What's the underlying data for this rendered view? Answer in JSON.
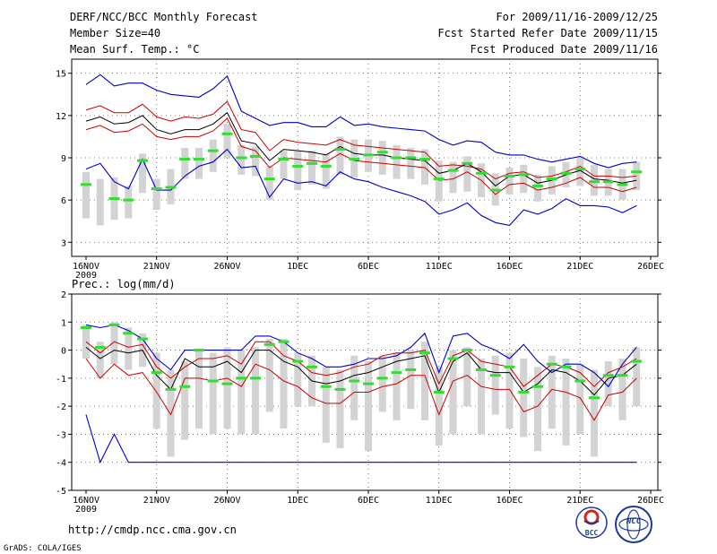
{
  "header": {
    "title": "DERF/NCC/BCC Monthly Forecast",
    "member_size": "Member Size=40",
    "variable": "Mean Surf. Temp.: °C",
    "period": "For 2009/11/16-2009/12/25",
    "started": "Fcst Started Refer Date 2009/11/15",
    "produced": "Fcst Produced Date 2009/11/16"
  },
  "footer": {
    "url": "http://cmdp.ncc.cma.gov.cn",
    "credit": "GrADS: COLA/IGES",
    "logo_left": "BCC",
    "logo_right": "NCC"
  },
  "colors": {
    "max_min": "#0000cc",
    "spread": "#cc0000",
    "mean": "#000000",
    "median": "#33dd33",
    "box": "#d3d3d3",
    "grid": "#555555"
  },
  "chart_data": [
    {
      "type": "line",
      "title": "Mean Surf. Temp.: °C",
      "ylim": [
        2,
        16
      ],
      "yticks": [
        3,
        6,
        9,
        12,
        15
      ],
      "x_labels": [
        "16NOV",
        "21NOV",
        "26NOV",
        "1DEC",
        "6DEC",
        "11DEC",
        "16DEC",
        "21DEC",
        "26DEC"
      ],
      "x_label_days": [
        0,
        5,
        10,
        15,
        20,
        25,
        30,
        35,
        40
      ],
      "year_label": "2009",
      "days": [
        0,
        1,
        2,
        3,
        4,
        5,
        6,
        7,
        8,
        9,
        10,
        11,
        12,
        13,
        14,
        15,
        16,
        17,
        18,
        19,
        20,
        21,
        22,
        23,
        24,
        25,
        26,
        27,
        28,
        29,
        30,
        31,
        32,
        33,
        34,
        35,
        36,
        37,
        38,
        39
      ],
      "series": [
        {
          "name": "max",
          "values": [
            14.2,
            14.9,
            14.1,
            14.3,
            14.3,
            13.8,
            13.5,
            13.4,
            13.3,
            13.9,
            14.8,
            12.3,
            11.8,
            11.3,
            11.5,
            11.5,
            11.2,
            11.2,
            11.9,
            11.3,
            11.4,
            11.2,
            11.1,
            11.0,
            10.9,
            10.3,
            9.9,
            10.2,
            10.1,
            9.4,
            9.2,
            9.2,
            8.9,
            8.7,
            8.9,
            9.1,
            8.6,
            8.3,
            8.6,
            8.7
          ]
        },
        {
          "name": "upper",
          "values": [
            12.4,
            12.7,
            12.2,
            12.2,
            12.8,
            11.9,
            11.6,
            11.9,
            11.8,
            12.1,
            13.0,
            11.0,
            10.8,
            9.5,
            10.3,
            10.1,
            10.0,
            9.9,
            10.3,
            9.9,
            9.8,
            9.7,
            9.6,
            9.5,
            9.4,
            8.4,
            8.5,
            8.4,
            8.2,
            7.5,
            7.9,
            8.0,
            7.6,
            7.7,
            8.0,
            8.4,
            7.7,
            7.7,
            7.6,
            7.7
          ]
        },
        {
          "name": "mean",
          "values": [
            11.6,
            11.9,
            11.4,
            11.5,
            12.0,
            11.0,
            10.7,
            11.0,
            11.0,
            11.4,
            12.2,
            10.2,
            10.0,
            8.8,
            9.6,
            9.5,
            9.4,
            9.2,
            9.8,
            9.3,
            9.2,
            9.2,
            9.0,
            8.9,
            8.8,
            7.9,
            8.1,
            8.6,
            8.0,
            7.0,
            7.7,
            7.8,
            7.2,
            7.4,
            7.8,
            8.1,
            7.5,
            7.4,
            7.2,
            7.4
          ]
        },
        {
          "name": "lower",
          "values": [
            11.0,
            11.3,
            10.8,
            10.9,
            11.4,
            10.5,
            10.3,
            10.5,
            10.5,
            10.9,
            11.8,
            9.8,
            9.5,
            8.3,
            9.0,
            8.9,
            8.8,
            8.7,
            9.3,
            8.8,
            8.7,
            8.6,
            8.5,
            8.4,
            8.3,
            7.4,
            7.5,
            8.0,
            7.4,
            6.4,
            7.1,
            7.2,
            6.7,
            6.9,
            7.2,
            7.6,
            6.9,
            6.9,
            6.6,
            6.9
          ]
        },
        {
          "name": "min",
          "values": [
            8.2,
            8.6,
            7.3,
            6.8,
            8.9,
            6.7,
            6.7,
            7.7,
            8.4,
            8.7,
            9.6,
            8.3,
            8.4,
            6.2,
            7.5,
            7.2,
            7.3,
            7.0,
            8.0,
            7.5,
            7.3,
            6.9,
            6.6,
            6.3,
            5.9,
            5.0,
            5.3,
            5.8,
            4.9,
            4.4,
            4.2,
            5.3,
            5.0,
            5.4,
            6.1,
            5.6,
            5.6,
            5.5,
            5.1,
            5.6
          ]
        },
        {
          "name": "median",
          "values": [
            7.1,
            null,
            6.1,
            6.0,
            8.8,
            6.8,
            6.9,
            8.9,
            8.9,
            9.5,
            10.7,
            9.0,
            9.1,
            7.5,
            8.9,
            8.4,
            8.6,
            8.4,
            9.6,
            8.9,
            9.2,
            9.4,
            9.0,
            9.0,
            8.9,
            7.5,
            8.1,
            8.6,
            7.9,
            6.7,
            7.7,
            7.8,
            7.0,
            7.5,
            7.9,
            8.2,
            7.3,
            7.3,
            7.1,
            8.0
          ]
        },
        {
          "name": "box_low",
          "values": [
            4.7,
            4.2,
            4.6,
            4.7,
            6.5,
            5.3,
            5.7,
            7.5,
            7.5,
            8.0,
            9.0,
            7.8,
            7.7,
            6.0,
            7.5,
            6.7,
            7.1,
            6.8,
            7.8,
            7.6,
            8.0,
            7.8,
            7.5,
            7.5,
            7.1,
            5.9,
            6.5,
            6.6,
            6.2,
            5.6,
            6.4,
            6.5,
            5.9,
            6.4,
            6.9,
            7.0,
            6.3,
            6.3,
            6.0,
            6.7
          ]
        },
        {
          "name": "box_high",
          "values": [
            8.0,
            7.5,
            7.6,
            7.0,
            9.3,
            7.5,
            8.2,
            9.7,
            9.7,
            10.3,
            11.4,
            9.9,
            9.8,
            8.4,
            9.5,
            9.5,
            9.5,
            9.3,
            10.5,
            10.3,
            10.3,
            10.2,
            9.9,
            9.7,
            9.6,
            8.8,
            8.7,
            9.1,
            8.6,
            7.9,
            8.3,
            8.5,
            7.8,
            8.4,
            8.7,
            9.1,
            8.5,
            8.2,
            8.2,
            8.7
          ]
        }
      ]
    },
    {
      "type": "line",
      "title": "Prec.: log(mm/d)",
      "ylim": [
        -5,
        2
      ],
      "yticks": [
        -5,
        -4,
        -3,
        -2,
        -1,
        0,
        1,
        2
      ],
      "x_labels": [
        "16NOV",
        "21NOV",
        "26NOV",
        "1DEC",
        "6DEC",
        "11DEC",
        "16DEC",
        "21DEC",
        "26DEC"
      ],
      "x_label_days": [
        0,
        5,
        10,
        15,
        20,
        25,
        30,
        35,
        40
      ],
      "year_label": "2009",
      "days": [
        0,
        1,
        2,
        3,
        4,
        5,
        6,
        7,
        8,
        9,
        10,
        11,
        12,
        13,
        14,
        15,
        16,
        17,
        18,
        19,
        20,
        21,
        22,
        23,
        24,
        25,
        26,
        27,
        28,
        29,
        30,
        31,
        32,
        33,
        34,
        35,
        36,
        37,
        38,
        39
      ],
      "series": [
        {
          "name": "max",
          "values": [
            0.9,
            0.8,
            0.9,
            0.7,
            0.4,
            -0.3,
            -0.7,
            0.0,
            0.0,
            0.0,
            0.0,
            0.0,
            0.5,
            0.5,
            0.3,
            -0.1,
            -0.3,
            -0.6,
            -0.6,
            -0.5,
            -0.3,
            -0.3,
            -0.2,
            0.1,
            0.6,
            -0.8,
            0.5,
            0.6,
            0.2,
            0.0,
            -0.3,
            0.2,
            -0.4,
            -0.8,
            -0.5,
            -0.5,
            -0.8,
            -1.3,
            -0.5,
            0.1
          ]
        },
        {
          "name": "upper",
          "values": [
            0.3,
            -0.1,
            0.3,
            0.1,
            0.2,
            -0.6,
            -1.0,
            -0.6,
            -0.3,
            -0.3,
            -0.2,
            -0.5,
            0.3,
            0.3,
            -0.2,
            -0.4,
            -0.8,
            -0.9,
            -0.8,
            -0.6,
            -0.5,
            -0.2,
            -0.1,
            -0.1,
            0.0,
            -1.2,
            -0.2,
            0.0,
            -0.4,
            -0.5,
            -0.6,
            -1.3,
            -0.9,
            -0.5,
            -0.6,
            -0.8,
            -1.3,
            -0.8,
            -0.6,
            -0.3
          ]
        },
        {
          "name": "mean",
          "values": [
            0.1,
            -0.3,
            0.0,
            -0.1,
            0.0,
            -0.9,
            -1.4,
            -0.3,
            -0.6,
            -0.6,
            -0.4,
            -0.8,
            0.0,
            0.0,
            -0.4,
            -0.6,
            -1.1,
            -1.2,
            -1.1,
            -0.9,
            -0.8,
            -0.6,
            -0.4,
            -0.3,
            -0.2,
            -1.5,
            -0.4,
            -0.1,
            -0.7,
            -0.8,
            -0.8,
            -1.5,
            -1.2,
            -0.7,
            -0.8,
            -1.1,
            -1.6,
            -1.0,
            -0.9,
            -0.5
          ]
        },
        {
          "name": "lower",
          "values": [
            -0.3,
            -1.0,
            -0.5,
            -0.9,
            -0.8,
            -1.5,
            -2.3,
            -1.0,
            -1.0,
            -1.1,
            -1.0,
            -1.3,
            -0.5,
            -0.7,
            -1.1,
            -1.3,
            -1.7,
            -1.9,
            -1.9,
            -1.5,
            -1.5,
            -1.3,
            -1.2,
            -0.9,
            -0.9,
            -2.3,
            -1.1,
            -0.9,
            -1.3,
            -1.4,
            -1.4,
            -2.2,
            -2.0,
            -1.4,
            -1.5,
            -1.7,
            -2.5,
            -1.6,
            -1.5,
            -1.0
          ]
        },
        {
          "name": "min",
          "values": [
            -2.3,
            -4.0,
            -3.0,
            -4.0,
            -4.0,
            -4.0,
            -4.0,
            -4.0,
            -4.0,
            -4.0,
            -4.0,
            -4.0,
            -4.0,
            -4.0,
            -4.0,
            -4.0,
            -4.0,
            -4.0,
            -4.0,
            -4.0,
            -4.0,
            -4.0,
            -4.0,
            -4.0,
            -4.0,
            -4.0,
            -4.0,
            -4.0,
            -4.0,
            -4.0,
            -4.0,
            -4.0,
            -4.0,
            -4.0,
            -4.0,
            -4.0,
            -4.0,
            -4.0,
            -4.0,
            -4.0
          ]
        },
        {
          "name": "median",
          "values": [
            0.8,
            0.1,
            0.9,
            0.6,
            0.4,
            -0.8,
            -1.4,
            -1.3,
            0.0,
            -1.1,
            -1.2,
            -1.0,
            -1.0,
            0.2,
            0.3,
            -0.4,
            -0.6,
            -1.3,
            -1.4,
            -1.1,
            -1.2,
            -1.0,
            -0.8,
            -0.7,
            -0.1,
            -1.5,
            -0.3,
            0.0,
            -0.7,
            -0.9,
            -0.6,
            -1.5,
            -1.3,
            -0.5,
            -0.6,
            -1.1,
            -1.7,
            -0.9,
            -0.9,
            -0.4
          ]
        },
        {
          "name": "box_low",
          "values": [
            -0.3,
            -1.0,
            -0.5,
            -0.7,
            -0.6,
            -2.8,
            -3.8,
            -3.2,
            -2.8,
            -3.0,
            -2.8,
            -3.0,
            -3.0,
            -2.2,
            -2.8,
            -2.0,
            -2.0,
            -3.3,
            -3.5,
            -2.5,
            -3.6,
            -2.2,
            -2.5,
            -2.1,
            -2.5,
            -3.4,
            -3.0,
            -2.0,
            -3.0,
            -2.3,
            -2.8,
            -3.1,
            -3.6,
            -2.8,
            -3.4,
            -3.0,
            -3.8,
            -2.0,
            -2.5,
            -2.0
          ]
        },
        {
          "name": "box_high",
          "values": [
            0.9,
            0.3,
            1.0,
            0.8,
            0.6,
            -0.1,
            -0.7,
            -0.4,
            0.0,
            -0.1,
            0.1,
            0.0,
            0.1,
            0.4,
            0.4,
            -0.1,
            -0.2,
            -0.6,
            -0.7,
            -0.2,
            -0.4,
            -0.2,
            -0.1,
            0.0,
            0.3,
            -0.6,
            0.0,
            0.1,
            -0.3,
            -0.2,
            -0.1,
            -0.3,
            -0.6,
            -0.2,
            -0.3,
            -0.5,
            -0.7,
            -0.4,
            -0.3,
            0.1
          ]
        }
      ]
    }
  ]
}
